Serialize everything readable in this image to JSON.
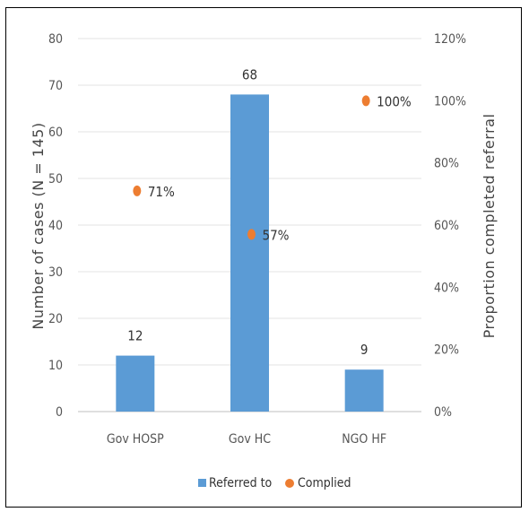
{
  "chart_data": {
    "type": "bar",
    "categories": [
      "Gov HOSP",
      "Gov HC",
      "NGO HF"
    ],
    "series": [
      {
        "name": "Referred to",
        "type": "bar",
        "axis": "left",
        "values": [
          12,
          68,
          9
        ],
        "labels": [
          "12",
          "68",
          "9"
        ],
        "color": "#5B9BD5"
      },
      {
        "name": "Complied",
        "type": "scatter",
        "axis": "right",
        "values": [
          71,
          57,
          100
        ],
        "labels": [
          "71%",
          "57%",
          "100%"
        ],
        "color": "#ED7D31"
      }
    ],
    "ylabel": "Number of cases (N = 145)",
    "y2label": "Proportion completed referral",
    "ylim": [
      0,
      80
    ],
    "yticks": [
      "0",
      "10",
      "20",
      "30",
      "40",
      "50",
      "60",
      "70",
      "80"
    ],
    "y2lim": [
      0,
      120
    ],
    "y2ticks": [
      "0%",
      "20%",
      "40%",
      "60%",
      "80%",
      "100%",
      "120%"
    ],
    "grid": true,
    "legend": "bottom"
  }
}
